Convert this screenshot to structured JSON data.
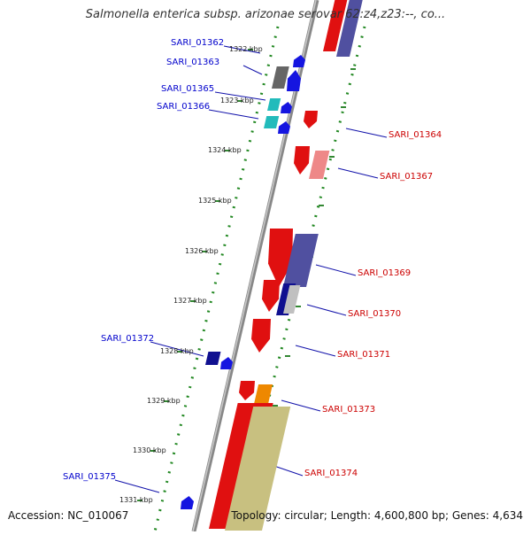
{
  "title": "Salmonella enterica subsp. arizonae serovar 62:z4,z23:--, co...",
  "footer": {
    "accession": "Accession: NC_010067",
    "topology": "Topology: circular; Length: 4,600,800 bp; Genes: 4,634"
  },
  "colors": {
    "backbone": "#888888",
    "plus_labels": "#0000cc",
    "minus_labels": "#cc0000",
    "dotted_guides": "#228822"
  },
  "ticks": [
    "1322 kbp",
    "1323 kbp",
    "1324 kbp",
    "1325 kbp",
    "1326 kbp",
    "1327 kbp",
    "1328 kbp",
    "1329 kbp",
    "1330 kbp",
    "1331 kbp"
  ],
  "genes_plus": [
    {
      "label": "SARI_01362",
      "color": "#1515e0"
    },
    {
      "label": "SARI_01363",
      "color": "#1515e0"
    },
    {
      "label": "SARI_01365",
      "color": "#1515e0"
    },
    {
      "label": "SARI_01366",
      "color": "#1515e0"
    },
    {
      "label": "SARI_01372",
      "color": "#1515e0"
    },
    {
      "label": "SARI_01375",
      "color": "#1515e0"
    }
  ],
  "genes_minus": [
    {
      "label": "SARI_01364",
      "color": "#e01010"
    },
    {
      "label": "SARI_01367",
      "color": "#e01010"
    },
    {
      "label": "SARI_01369",
      "color": "#e01010"
    },
    {
      "label": "SARI_01370",
      "color": "#e01010"
    },
    {
      "label": "SARI_01371",
      "color": "#e01010"
    },
    {
      "label": "SARI_01373",
      "color": "#e01010"
    },
    {
      "label": "SARI_01374",
      "color": "#e01010"
    }
  ]
}
